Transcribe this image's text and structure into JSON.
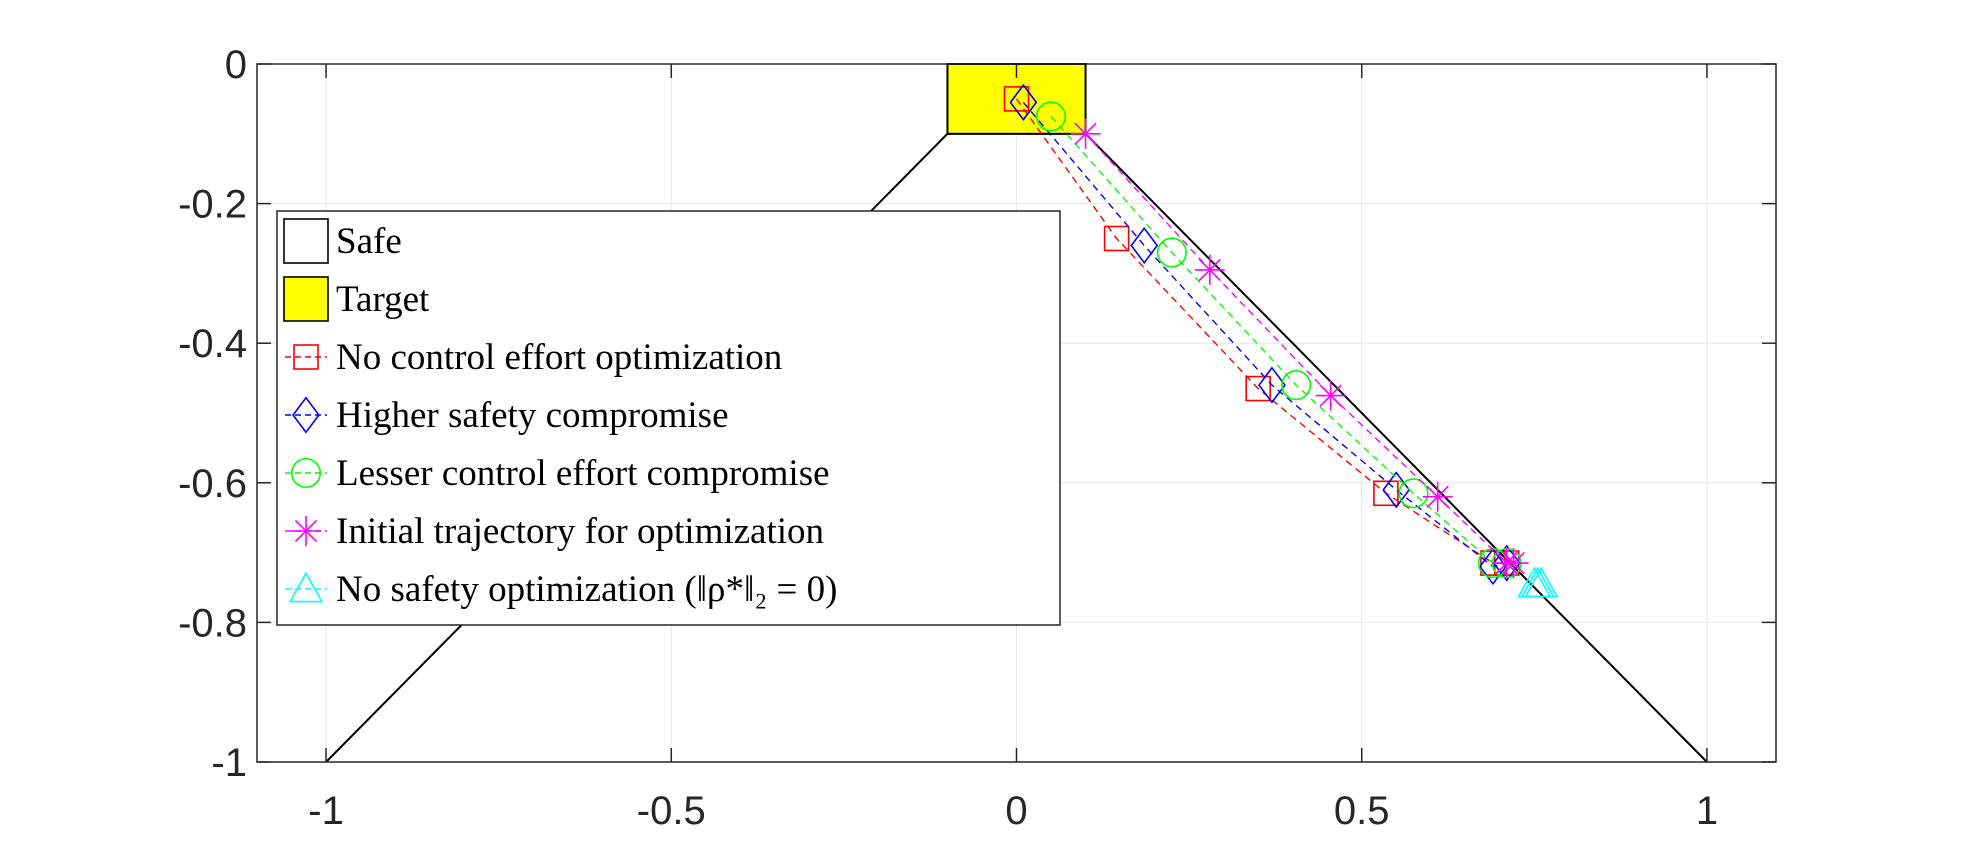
{
  "chart_data": {
    "type": "line",
    "title": "",
    "xlabel": "",
    "ylabel": "",
    "xlim": [
      -1.1,
      1.1
    ],
    "ylim": [
      -1,
      0
    ],
    "grid": true,
    "legend_position": "left",
    "x_ticks": [
      {
        "value": -1,
        "label": "-1"
      },
      {
        "value": -0.5,
        "label": "-0.5"
      },
      {
        "value": 0,
        "label": "0"
      },
      {
        "value": 0.5,
        "label": "0.5"
      },
      {
        "value": 1,
        "label": "1"
      }
    ],
    "y_ticks": [
      {
        "value": 0,
        "label": "0"
      },
      {
        "value": -0.2,
        "label": "-0.2"
      },
      {
        "value": -0.4,
        "label": "-0.4"
      },
      {
        "value": -0.6,
        "label": "-0.6"
      },
      {
        "value": -0.8,
        "label": "-0.8"
      },
      {
        "value": -1,
        "label": "-1"
      }
    ],
    "safe_region": {
      "name": "Safe",
      "color": "#000000",
      "points": [
        [
          -1,
          -1
        ],
        [
          -0.1,
          -0.1
        ],
        [
          0.1,
          -0.1
        ],
        [
          1,
          -1
        ]
      ]
    },
    "target_region": {
      "name": "Target",
      "color": "#ffff00",
      "x": [
        -0.1,
        0.1
      ],
      "y": [
        -0.1,
        0
      ]
    },
    "series": [
      {
        "name": "No control effort optimization",
        "color": "#ff0000",
        "marker": "square",
        "x": [
          0.0,
          0.145,
          0.35,
          0.535,
          0.69,
          0.71
        ],
        "y": [
          -0.05,
          -0.25,
          -0.465,
          -0.615,
          -0.715,
          -0.715
        ]
      },
      {
        "name": "Higher safety compromise",
        "color": "#0000ff",
        "marker": "diamond",
        "x": [
          0.01,
          0.185,
          0.37,
          0.55,
          0.69,
          0.71
        ],
        "y": [
          -0.055,
          -0.26,
          -0.46,
          -0.61,
          -0.72,
          -0.715
        ]
      },
      {
        "name": "Lesser control effort compromise",
        "color": "#00ff00",
        "marker": "circle",
        "x": [
          0.05,
          0.225,
          0.405,
          0.575,
          0.69,
          0.71
        ],
        "y": [
          -0.075,
          -0.27,
          -0.46,
          -0.615,
          -0.715,
          -0.715
        ]
      },
      {
        "name": "Initial trajectory for optimization",
        "color": "#ff00ff",
        "marker": "asterisk",
        "x": [
          0.1,
          0.28,
          0.455,
          0.61,
          0.71,
          0.72
        ],
        "y": [
          -0.1,
          -0.295,
          -0.475,
          -0.62,
          -0.715,
          -0.715
        ]
      },
      {
        "name": "No safety optimization (‖ρ*‖₂ = 0)",
        "color": "#00ffff",
        "marker": "triangle",
        "x": [
          0.75,
          0.755,
          0.76
        ],
        "y": [
          -0.745,
          -0.745,
          -0.745
        ]
      }
    ]
  }
}
